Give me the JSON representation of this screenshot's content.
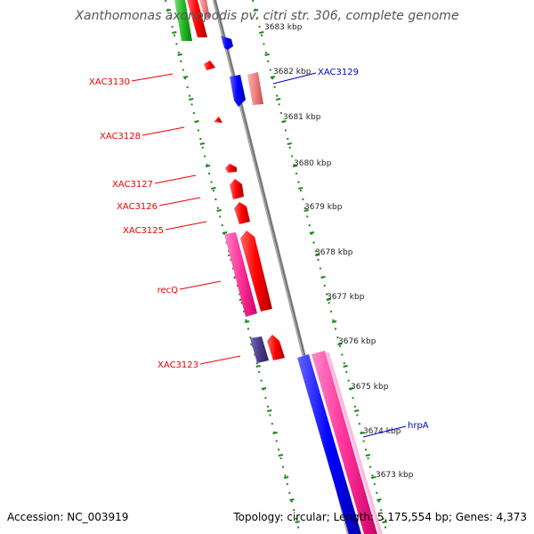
{
  "title": "Xanthomonas axonopodis pv. citri str. 306, complete genome",
  "footer": {
    "accession": "Accession: NC_003919",
    "topology": "Topology: circular; Length: 5,175,554 bp; Genes: 4,373"
  },
  "ticks": [
    "3683 kbp",
    "3682 kbp",
    "3681 kbp",
    "3680 kbp",
    "3679 kbp",
    "3678 kbp",
    "3677 kbp",
    "3676 kbp",
    "3675 kbp",
    "3674 kbp",
    "3673 kbp"
  ],
  "gene_labels": {
    "xac3130": "XAC3130",
    "xac3128": "XAC3128",
    "xac3127": "XAC3127",
    "xac3126": "XAC3126",
    "xac3125": "XAC3125",
    "recq": "recQ",
    "xac3123": "XAC3123",
    "xac3129": "XAC3129",
    "hrpa": "hrpA"
  },
  "colors": {
    "red": "#ff0000",
    "blue": "#0000ff",
    "pink": "#ff3399",
    "light_red": "#f08080",
    "purple": "#4b3a8c",
    "green": "#22bb22",
    "backbone": "#888888",
    "dots": "#1a8a1a",
    "label_red": "#ee0000",
    "label_blue": "#0000cc"
  }
}
